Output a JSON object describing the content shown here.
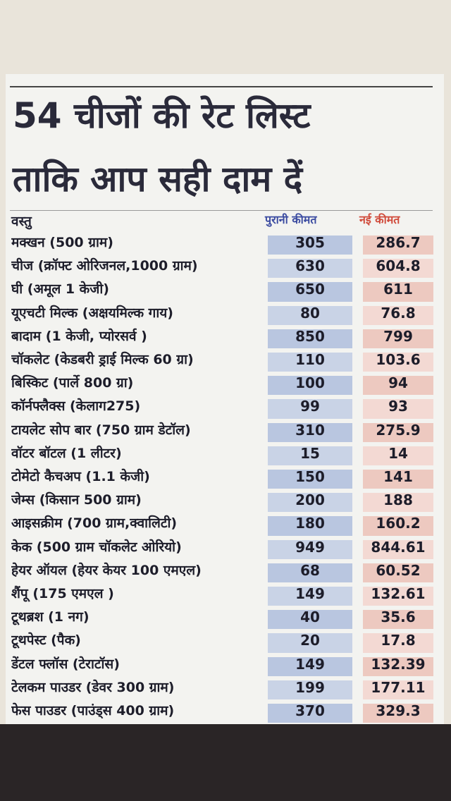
{
  "header": {
    "title_line1": "54 चीजों की रेट लिस्ट",
    "title_line2": "ताकि आप सही दाम दें"
  },
  "table": {
    "columns": [
      "वस्तु",
      "पुरानी कीमत",
      "नई कीमत"
    ],
    "rows": [
      [
        "मक्खन (500 ग्राम)",
        "305",
        "286.7"
      ],
      [
        "चीज (क्रॉफ्ट ओरिजनल,1000 ग्राम)",
        "630",
        "604.8"
      ],
      [
        "घी (अमूल 1 केजी)",
        "650",
        "611"
      ],
      [
        "यूएचटी मिल्क (अक्षयमिल्क गाय)",
        "80",
        "76.8"
      ],
      [
        "बादाम (1 केजी, प्योरसर्व )",
        "850",
        "799"
      ],
      [
        "चॉकलेट (केडबरी ड्राई मिल्क 60 ग्रा)",
        "110",
        "103.6"
      ],
      [
        "बिस्किट (पार्ले 800 ग्रा)",
        "100",
        "94"
      ],
      [
        "कॉर्नफ्लैक्स (केलाग275)",
        "99",
        "93"
      ],
      [
        "टायलेट सोप बार (750 ग्राम डेटॉल)",
        "310",
        "275.9"
      ],
      [
        "वॉटर बॉटल (1 लीटर)",
        "15",
        "14"
      ],
      [
        "टोमेटो कैचअप (1.1 केजी)",
        "150",
        "141"
      ],
      [
        "जेम्स (किसान 500 ग्राम)",
        "200",
        "188"
      ],
      [
        "आइसक्रीम (700 ग्राम,क्वालिटी)",
        "180",
        "160.2"
      ],
      [
        "केक (500 ग्राम चॉकलेट ओरियो)",
        "949",
        "844.61"
      ],
      [
        "हेयर ऑयल (हेयर केयर 100 एमएल)",
        "68",
        "60.52"
      ],
      [
        "शैंपू (175 एमएल )",
        "149",
        "132.61"
      ],
      [
        "टूथब्रश (1 नग)",
        "40",
        "35.6"
      ],
      [
        "टूथपेस्ट (पैक)",
        "20",
        "17.8"
      ],
      [
        "डेंटल फ्लॉस (टेराटॉस)",
        "149",
        "132.39"
      ],
      [
        "टेलकम पाउडर (डेवर 300 ग्राम)",
        "199",
        "177.11"
      ],
      [
        "फेस पाउडर (पाउंड्स 400 ग्राम)",
        "370",
        "329.3"
      ]
    ]
  }
}
